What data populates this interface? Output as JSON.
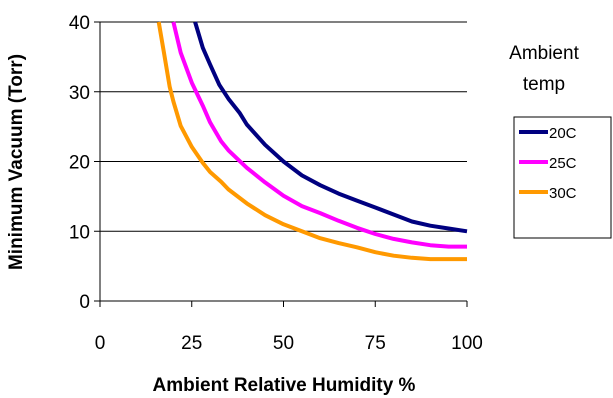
{
  "chart_data": {
    "type": "line",
    "xlabel": "Ambient Relative Humidity %",
    "ylabel": "Minimum Vacuum (Torr)",
    "xlim": [
      0,
      100
    ],
    "ylim": [
      0,
      40
    ],
    "xticks": [
      "0",
      "25",
      "50",
      "75",
      "100"
    ],
    "yticks": [
      "0",
      "10",
      "20",
      "30",
      "40"
    ],
    "grid": "horizontal",
    "legend": {
      "title_lines": [
        "Ambient",
        "temp"
      ],
      "placement": "right"
    },
    "series": [
      {
        "name": "20C",
        "color": "#000080",
        "x": [
          25.9,
          28,
          30,
          32.5,
          35,
          38,
          40,
          45,
          50,
          55,
          60,
          65,
          70,
          75,
          80,
          85,
          90,
          95,
          100
        ],
        "y": [
          40,
          36.3,
          33.9,
          31,
          29,
          27,
          25.3,
          22.4,
          20,
          18,
          16.6,
          15.4,
          14.4,
          13.4,
          12.4,
          11.4,
          10.8,
          10.4,
          10
        ]
      },
      {
        "name": "25C",
        "color": "#FF00FF",
        "x": [
          20,
          22,
          25,
          28,
          30,
          33,
          35,
          40,
          45,
          50,
          55,
          60,
          65,
          70,
          75,
          80,
          85,
          90,
          95,
          100
        ],
        "y": [
          40,
          35.6,
          31.3,
          28,
          25.6,
          22.9,
          21.6,
          19.1,
          17,
          15.1,
          13.6,
          12.6,
          11.5,
          10.5,
          9.6,
          8.9,
          8.4,
          8,
          7.8,
          7.8
        ]
      },
      {
        "name": "30C",
        "color": "#FF9900",
        "x": [
          16,
          17.5,
          19,
          20,
          22,
          25,
          28,
          30,
          33,
          35,
          40,
          45,
          50,
          55,
          60,
          65,
          70,
          75,
          80,
          85,
          90,
          95,
          100
        ],
        "y": [
          40,
          35.4,
          30.7,
          28.6,
          25.1,
          22.1,
          19.8,
          18.5,
          17.1,
          16,
          14,
          12.3,
          11,
          10,
          9,
          8.3,
          7.7,
          7,
          6.5,
          6.2,
          6,
          6,
          6
        ]
      }
    ]
  }
}
